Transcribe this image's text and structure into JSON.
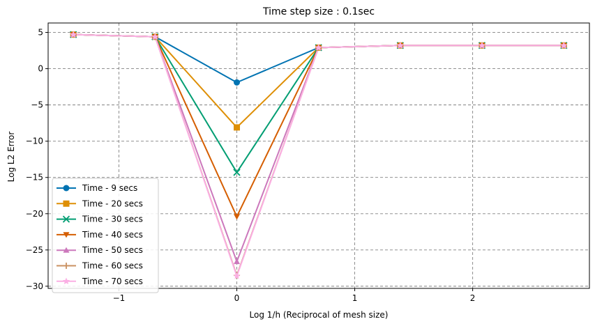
{
  "chart_data": {
    "type": "line",
    "title": "Time step size : 0.1sec",
    "xlabel": "Log 1/h (Reciprocal of mesh size)",
    "ylabel": "Log L2 Error",
    "x": [
      -1.386,
      -0.693,
      0.0,
      0.693,
      1.386,
      2.079,
      2.773
    ],
    "xlim": [
      -1.6,
      2.99
    ],
    "ylim": [
      -30.3,
      6.3
    ],
    "xticks": [
      -1,
      0,
      1,
      2
    ],
    "yticks": [
      5,
      0,
      -5,
      -10,
      -15,
      -20,
      -25,
      -30
    ],
    "xtick_labels": [
      "−1",
      "0",
      "1",
      "2"
    ],
    "ytick_labels": [
      "5",
      "0",
      "−5",
      "−10",
      "−15",
      "−20",
      "−25",
      "−30"
    ],
    "grid": true,
    "legend_position": "lower-left",
    "series": [
      {
        "name": "Time - 9 secs",
        "color": "#0173b2",
        "marker": "circle",
        "values": [
          4.7,
          4.4,
          -1.9,
          2.9,
          3.2,
          3.2,
          3.2
        ]
      },
      {
        "name": "Time - 20 secs",
        "color": "#de8f05",
        "marker": "square",
        "values": [
          4.7,
          4.4,
          -8.1,
          2.9,
          3.2,
          3.2,
          3.2
        ]
      },
      {
        "name": "Time - 30 secs",
        "color": "#029e73",
        "marker": "x",
        "values": [
          4.7,
          4.4,
          -14.3,
          2.9,
          3.2,
          3.2,
          3.2
        ]
      },
      {
        "name": "Time - 40 secs",
        "color": "#d55e00",
        "marker": "triangle-down",
        "values": [
          4.7,
          4.4,
          -20.4,
          2.9,
          3.2,
          3.2,
          3.2
        ]
      },
      {
        "name": "Time - 50 secs",
        "color": "#cc78bc",
        "marker": "triangle-up",
        "values": [
          4.7,
          4.4,
          -26.6,
          2.9,
          3.2,
          3.2,
          3.2
        ]
      },
      {
        "name": "Time - 60 secs",
        "color": "#ca9161",
        "marker": "plus",
        "values": [
          4.7,
          4.4,
          -28.5,
          2.9,
          3.2,
          3.2,
          3.2
        ]
      },
      {
        "name": "Time - 70 secs",
        "color": "#fbafe4",
        "marker": "star",
        "values": [
          4.7,
          4.4,
          -28.6,
          2.9,
          3.2,
          3.2,
          3.2
        ]
      }
    ]
  }
}
